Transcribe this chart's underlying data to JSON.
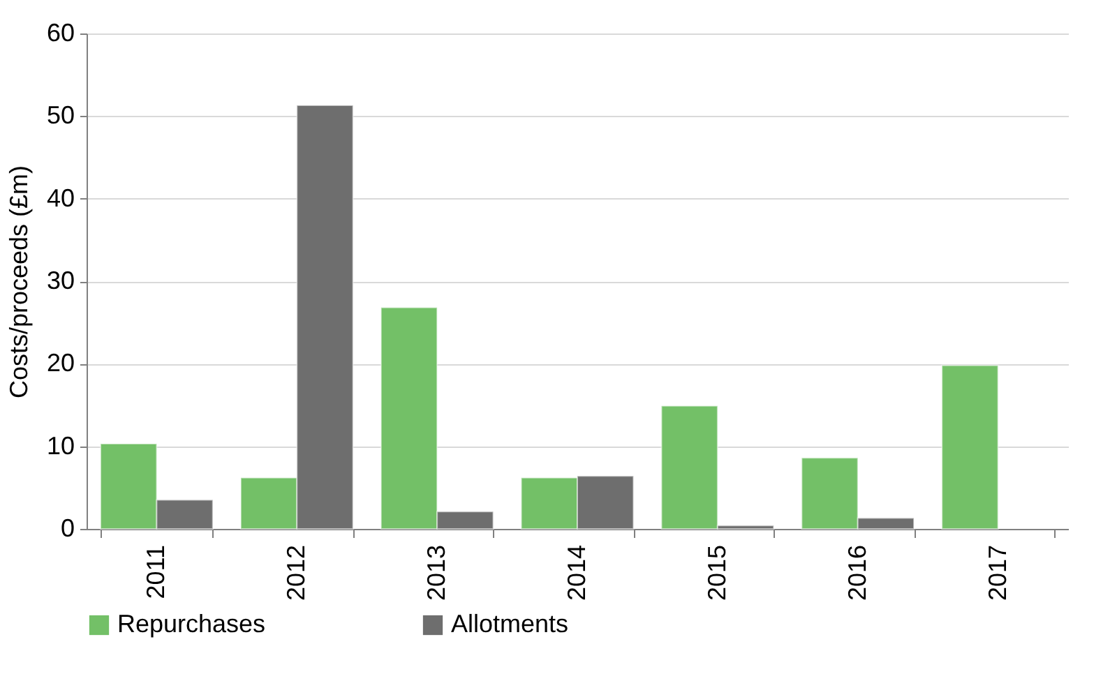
{
  "chart_data": {
    "type": "bar",
    "ylabel": "Costs/proceeds (£m)",
    "categories": [
      "2011",
      "2012",
      "2013",
      "2014",
      "2015",
      "2016",
      "2017"
    ],
    "series": [
      {
        "name": "Repurchases",
        "color": "#73c067",
        "values": [
          10.3,
          6.2,
          26.8,
          6.2,
          14.9,
          8.6,
          19.8
        ]
      },
      {
        "name": "Allotments",
        "color": "#6e6e6e",
        "values": [
          3.5,
          51.3,
          2.1,
          6.4,
          0.4,
          1.3,
          null
        ]
      }
    ],
    "ylim": [
      0,
      60
    ],
    "yticks": [
      0,
      10,
      20,
      30,
      40,
      50,
      60
    ],
    "grid": "y",
    "legend": "bottom"
  }
}
